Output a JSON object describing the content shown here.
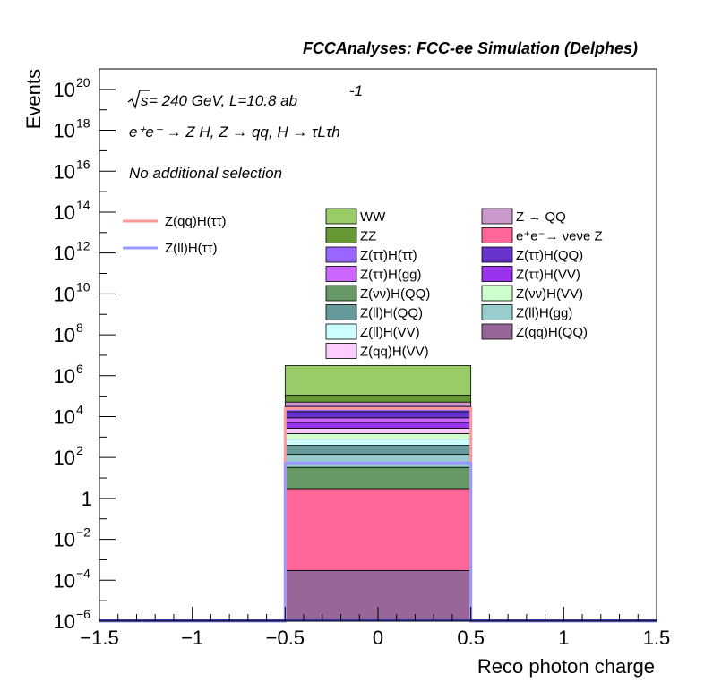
{
  "chart_data": {
    "type": "bar",
    "stacked": true,
    "log_y": true,
    "title": "FCCAnalyses: FCC-ee Simulation (Delphes)",
    "xlabel": "Reco photon charge",
    "ylabel": "Events",
    "xlim": [
      -1.5,
      1.5
    ],
    "ylim": [
      1e-06,
      1e+21
    ],
    "grid": false,
    "legend_placement": "top",
    "annotations": {
      "energy_prefix": "s",
      "energy_rest": " = 240 GeV, L=10.8 ab",
      "energy_exp": "-1",
      "process": "e⁺e⁻ → Z H, Z → qq, H → τLτh",
      "selection": "No additional selection"
    },
    "x_ticks": [
      {
        "value": -1.5,
        "label": "−1.5"
      },
      {
        "value": -1,
        "label": "−1"
      },
      {
        "value": -0.5,
        "label": "−0.5"
      },
      {
        "value": 0,
        "label": "0"
      },
      {
        "value": 0.5,
        "label": "0.5"
      },
      {
        "value": 1,
        "label": "1"
      },
      {
        "value": 1.5,
        "label": "1.5"
      }
    ],
    "y_ticks": [
      {
        "exp": -6,
        "base": "10",
        "sup": "−6"
      },
      {
        "exp": -4,
        "base": "10",
        "sup": "−4"
      },
      {
        "exp": -2,
        "base": "10",
        "sup": "−2"
      },
      {
        "exp": 0,
        "base": "1",
        "sup": ""
      },
      {
        "exp": 2,
        "base": "10",
        "sup": "2"
      },
      {
        "exp": 4,
        "base": "10",
        "sup": "4"
      },
      {
        "exp": 6,
        "base": "10",
        "sup": "6"
      },
      {
        "exp": 8,
        "base": "10",
        "sup": "8"
      },
      {
        "exp": 10,
        "base": "10",
        "sup": "10"
      },
      {
        "exp": 12,
        "base": "10",
        "sup": "12"
      },
      {
        "exp": 14,
        "base": "10",
        "sup": "14"
      },
      {
        "exp": 16,
        "base": "10",
        "sup": "16"
      },
      {
        "exp": 18,
        "base": "10",
        "sup": "18"
      },
      {
        "exp": 20,
        "base": "10",
        "sup": "20"
      }
    ],
    "bin": {
      "x_low": -0.5,
      "x_high": 0.5
    },
    "stack": [
      {
        "name": "Z(qq)H(QQ)",
        "color": "#996699",
        "value": 0.0003
      },
      {
        "name": "e⁺e⁻→ νeνe Z",
        "color": "#ff6699",
        "value": 3
      },
      {
        "name": "Z(νν)H(QQ)",
        "color": "#669966",
        "value": 30
      },
      {
        "name": "Z(ll)H(gg)",
        "color": "#99cccc",
        "value": 110
      },
      {
        "name": "Z(ll)H(QQ)",
        "color": "#669999",
        "value": 250
      },
      {
        "name": "Z(ll)H(VV)",
        "color": "#ccffff",
        "value": 400
      },
      {
        "name": "Z(νν)H(VV)",
        "color": "#ccffcc",
        "value": 700
      },
      {
        "name": "Z(qq)H(VV)",
        "color": "#ffccff",
        "value": 1200
      },
      {
        "name": "Z(ττ)H(VV)",
        "color": "#9933ee",
        "value": 2500
      },
      {
        "name": "Z(ττ)H(gg)",
        "color": "#cc66ff",
        "value": 3500
      },
      {
        "name": "Z(ττ)H(QQ)",
        "color": "#6633cc",
        "value": 9000
      },
      {
        "name": "Z(ττ)H(ττ)",
        "color": "#9966ff",
        "value": 14000
      },
      {
        "name": "Z → QQ",
        "color": "#cc99cc",
        "value": 20000
      },
      {
        "name": "ZZ",
        "color": "#669933",
        "value": 60000
      },
      {
        "name": "WW",
        "color": "#99cc66",
        "value": 3000000
      }
    ],
    "signals": [
      {
        "name": "Z(qq)H(ττ)",
        "color": "#ff9999",
        "value": 25000
      },
      {
        "name": "Z(ll)H(ττ)",
        "color": "#9999ff",
        "value": 55
      }
    ],
    "legend_left": [
      "Z(qq)H(ττ)",
      "Z(ll)H(ττ)"
    ],
    "legend_col1": [
      "WW",
      "ZZ",
      "Z(ττ)H(ττ)",
      "Z(ττ)H(gg)",
      "Z(νν)H(QQ)",
      "Z(ll)H(QQ)",
      "Z(ll)H(VV)",
      "Z(qq)H(VV)"
    ],
    "legend_col2": [
      "Z → QQ",
      "e⁺e⁻→ νeνe Z",
      "Z(ττ)H(QQ)",
      "Z(ττ)H(VV)",
      "Z(νν)H(VV)",
      "Z(ll)H(gg)",
      "Z(qq)H(QQ)"
    ]
  }
}
